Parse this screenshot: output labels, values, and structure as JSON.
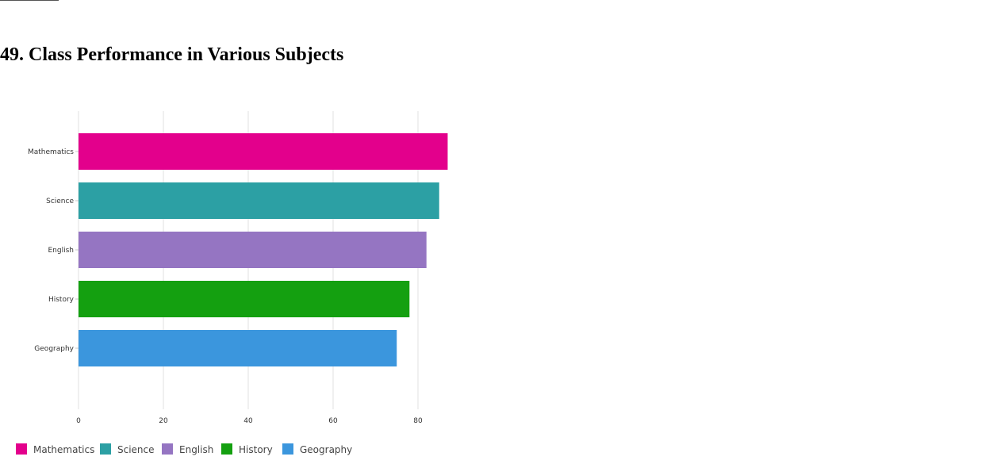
{
  "page": {
    "title": "49. Class Performance in Various Subjects"
  },
  "chart_data": {
    "type": "bar",
    "orientation": "horizontal",
    "title": "",
    "xlabel": "",
    "ylabel": "",
    "categories": [
      "Mathematics",
      "Science",
      "English",
      "History",
      "Geography"
    ],
    "values": [
      87,
      85,
      82,
      78,
      75
    ],
    "colors": [
      "#e3008c",
      "#2ca0a4",
      "#9575c2",
      "#14a010",
      "#3b96dd"
    ],
    "xlim": [
      0,
      90
    ],
    "xticks": [
      0,
      20,
      40,
      60,
      80
    ],
    "grid": true,
    "legend": {
      "position": "bottom-left",
      "entries": [
        "Mathematics",
        "Science",
        "English",
        "History",
        "Geography"
      ]
    }
  }
}
